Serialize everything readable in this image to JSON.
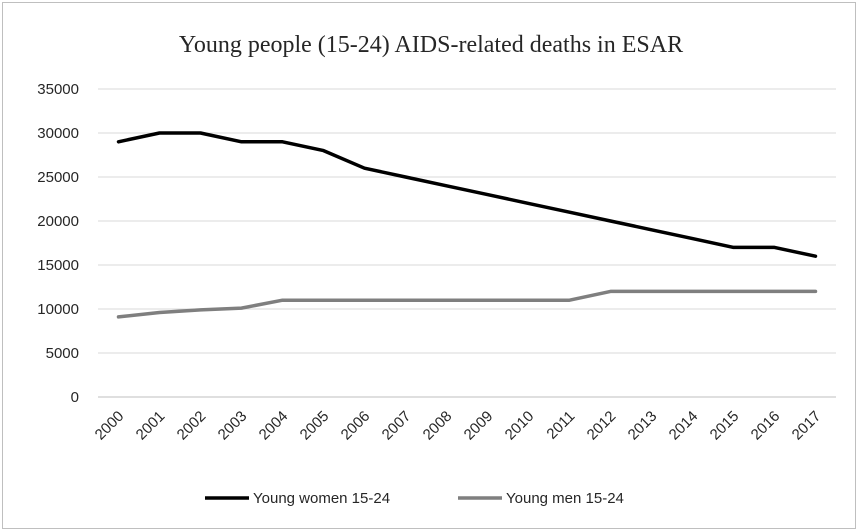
{
  "chart_data": {
    "type": "line",
    "title": "Young people (15-24) AIDS-related deaths in ESAR",
    "xlabel": "",
    "ylabel": "",
    "categories": [
      "2000",
      "2001",
      "2002",
      "2003",
      "2004",
      "2005",
      "2006",
      "2007",
      "2008",
      "2009",
      "2010",
      "2011",
      "2012",
      "2013",
      "2014",
      "2015",
      "2016",
      "2017"
    ],
    "ylim": [
      0,
      35000
    ],
    "yticks": [
      0,
      5000,
      10000,
      15000,
      20000,
      25000,
      30000,
      35000
    ],
    "grid": true,
    "legend_position": "bottom",
    "series": [
      {
        "name": "Young women 15-24",
        "color": "#000000",
        "values": [
          29000,
          30000,
          30000,
          29000,
          29000,
          28000,
          26000,
          25000,
          24000,
          23000,
          22000,
          21000,
          20000,
          19000,
          18000,
          17000,
          17000,
          16000
        ]
      },
      {
        "name": "Young men 15-24",
        "color": "#7f7f7f",
        "values": [
          9100,
          9600,
          9900,
          10100,
          11000,
          11000,
          11000,
          11000,
          11000,
          11000,
          11000,
          11000,
          12000,
          12000,
          12000,
          12000,
          12000,
          12000
        ]
      }
    ]
  }
}
